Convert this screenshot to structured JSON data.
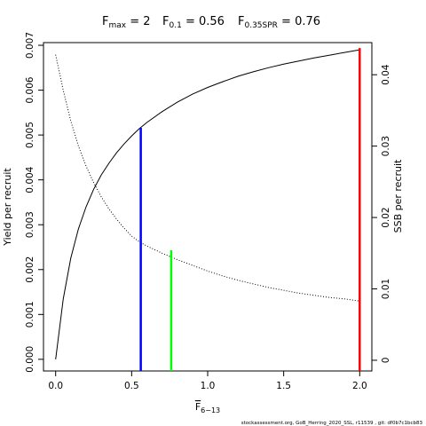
{
  "chart_data": {
    "type": "line",
    "title_parts": [
      {
        "base": "F",
        "sub": "max",
        "rest": " = 2"
      },
      {
        "base": "F",
        "sub": "0.1",
        "rest": " = 0.56"
      },
      {
        "base": "F",
        "sub": "0.35SPR",
        "rest": " = 0.76"
      }
    ],
    "xlabel": {
      "base": "F",
      "sub": "6−13"
    },
    "ylabel": "Yield per recruit",
    "y2label": "SSB per recruit",
    "xlim": [
      -0.08,
      2.08
    ],
    "ylim": [
      -0.00026,
      0.00706
    ],
    "y2lim": [
      -0.0015,
      0.0445
    ],
    "x_ticks": [
      {
        "v": 0,
        "label": "0.0"
      },
      {
        "v": 0.5,
        "label": "0.5"
      },
      {
        "v": 1.0,
        "label": "1.0"
      },
      {
        "v": 1.5,
        "label": "1.5"
      },
      {
        "v": 2.0,
        "label": "2.0"
      }
    ],
    "y_ticks": [
      {
        "v": 0,
        "label": "0.000"
      },
      {
        "v": 0.001,
        "label": "0.001"
      },
      {
        "v": 0.002,
        "label": "0.002"
      },
      {
        "v": 0.003,
        "label": "0.003"
      },
      {
        "v": 0.004,
        "label": "0.004"
      },
      {
        "v": 0.005,
        "label": "0.005"
      },
      {
        "v": 0.006,
        "label": "0.006"
      },
      {
        "v": 0.007,
        "label": "0.007"
      }
    ],
    "y2_ticks": [
      {
        "v": 0,
        "label": "0"
      },
      {
        "v": 0.01,
        "label": "0.01"
      },
      {
        "v": 0.02,
        "label": "0.02"
      },
      {
        "v": 0.03,
        "label": "0.03"
      },
      {
        "v": 0.04,
        "label": "0.04"
      }
    ],
    "series": [
      {
        "axis": "left",
        "style": "solid",
        "color": "#000000",
        "x": [
          0,
          0.05,
          0.1,
          0.15,
          0.2,
          0.25,
          0.3,
          0.35,
          0.4,
          0.45,
          0.5,
          0.55,
          0.6,
          0.7,
          0.8,
          0.9,
          1.0,
          1.1,
          1.2,
          1.3,
          1.4,
          1.5,
          1.6,
          1.7,
          1.8,
          1.9,
          2.0
        ],
        "y": [
          0,
          0.00135,
          0.00226,
          0.00291,
          0.0034,
          0.00379,
          0.00411,
          0.00437,
          0.0046,
          0.0048,
          0.00498,
          0.00514,
          0.00528,
          0.00552,
          0.00573,
          0.00591,
          0.00606,
          0.00619,
          0.00631,
          0.00641,
          0.0065,
          0.00658,
          0.00665,
          0.00672,
          0.00678,
          0.00684,
          0.0069
        ]
      },
      {
        "axis": "right",
        "style": "dotted",
        "color": "#000000",
        "x": [
          0,
          0.05,
          0.1,
          0.15,
          0.2,
          0.25,
          0.3,
          0.35,
          0.4,
          0.45,
          0.5,
          0.55,
          0.6,
          0.7,
          0.8,
          0.9,
          1.0,
          1.1,
          1.2,
          1.3,
          1.4,
          1.5,
          1.6,
          1.7,
          1.8,
          1.9,
          2.0
        ],
        "y": [
          0.0428,
          0.0378,
          0.0335,
          0.03,
          0.0272,
          0.0249,
          0.0229,
          0.0212,
          0.0198,
          0.0185,
          0.0174,
          0.0166,
          0.016,
          0.015,
          0.0141,
          0.0133,
          0.0125,
          0.0118,
          0.0112,
          0.0107,
          0.0102,
          0.0098,
          0.0094,
          0.0091,
          0.0088,
          0.0086,
          0.0083
        ]
      }
    ],
    "reference_lines": [
      {
        "label": "F0.1",
        "x": 0.56,
        "y_top": 0.00516,
        "color": "#0000ff"
      },
      {
        "label": "F0.35SPR",
        "x": 0.76,
        "y_top": 0.00243,
        "color": "#00ff00"
      },
      {
        "label": "Fmax",
        "x": 2.0,
        "y_top": 0.00694,
        "color": "#ff0000"
      }
    ],
    "grid": false
  },
  "footer": "stockassessment.org,  GoB_Herring_2020_SSL,  r11539 ,  git:  df0b7c1bcb83"
}
